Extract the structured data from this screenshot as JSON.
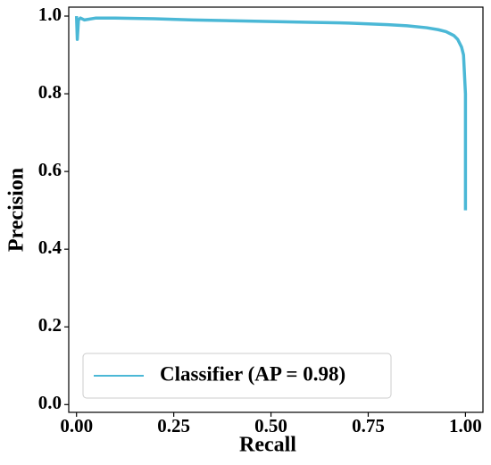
{
  "chart_data": {
    "type": "line",
    "xlabel": "Recall",
    "ylabel": "Precision",
    "x": [
      0,
      0.002,
      0.005,
      0.01,
      0.02,
      0.05,
      0.1,
      0.2,
      0.3,
      0.4,
      0.5,
      0.6,
      0.7,
      0.8,
      0.85,
      0.9,
      0.93,
      0.95,
      0.97,
      0.98,
      0.99,
      0.995,
      1.0,
      1.0
    ],
    "series": [
      {
        "name": "Classifier (AP = 0.98)",
        "color": "#4bb8d6",
        "values": [
          1.0,
          0.94,
          0.99,
          0.995,
          0.99,
          0.995,
          0.995,
          0.993,
          0.99,
          0.988,
          0.986,
          0.984,
          0.982,
          0.978,
          0.975,
          0.97,
          0.965,
          0.96,
          0.95,
          0.94,
          0.92,
          0.9,
          0.8,
          0.5
        ]
      }
    ],
    "xlim": [
      -0.02,
      1.045
    ],
    "ylim": [
      -0.02,
      1.023
    ],
    "xticks": [
      {
        "value": 0,
        "label": "0.00"
      },
      {
        "value": 0.25,
        "label": "0.25"
      },
      {
        "value": 0.5,
        "label": "0.50"
      },
      {
        "value": 0.75,
        "label": "0.75"
      },
      {
        "value": 1,
        "label": "1.00"
      }
    ],
    "yticks": [
      {
        "value": 0,
        "label": "0.0"
      },
      0.2,
      0.4,
      0.6,
      0.8,
      {
        "value": 1,
        "label": "1.0"
      }
    ],
    "legend": "lower left",
    "grid": false
  }
}
